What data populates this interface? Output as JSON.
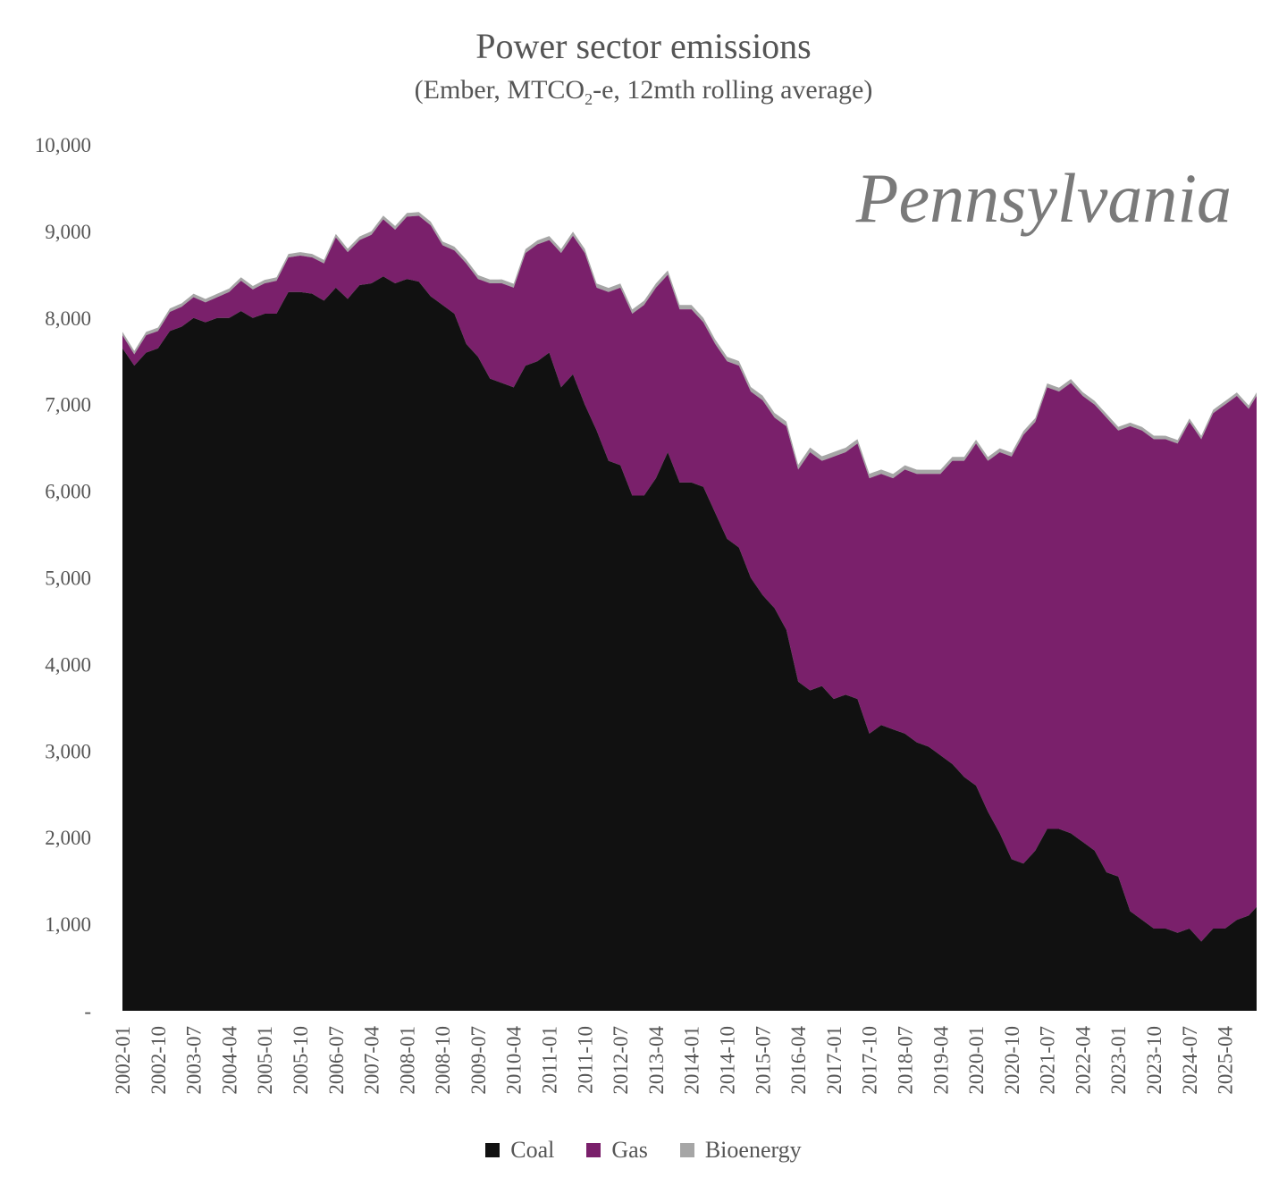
{
  "title": "Power sector emissions",
  "subtitle": {
    "before": "(Ember, MTCO",
    "sub": "2",
    "after": "-e, 12mth rolling average)"
  },
  "watermark": "Pennsylvania",
  "colors": {
    "coal": "#111111",
    "gas": "#7a206b",
    "bioenergy": "#a6a6a6"
  },
  "legend": [
    {
      "name": "Coal",
      "color": "#111111"
    },
    {
      "name": "Gas",
      "color": "#7a206b"
    },
    {
      "name": "Bioenergy",
      "color": "#a6a6a6"
    }
  ],
  "chart_data": {
    "type": "area",
    "stacked": true,
    "x_start": "2002-01",
    "x_end": "2025-12",
    "y_ticks": [
      "-",
      "1,000",
      "2,000",
      "3,000",
      "4,000",
      "5,000",
      "6,000",
      "7,000",
      "8,000",
      "9,000",
      "10,000"
    ],
    "ylim": [
      0,
      10000
    ],
    "x_ticks": [
      "2002-01",
      "2002-10",
      "2003-07",
      "2004-04",
      "2005-01",
      "2005-10",
      "2006-07",
      "2007-04",
      "2008-01",
      "2008-10",
      "2009-07",
      "2010-04",
      "2011-01",
      "2011-10",
      "2012-07",
      "2013-04",
      "2014-01",
      "2014-10",
      "2015-07",
      "2016-04",
      "2017-01",
      "2017-10",
      "2018-07",
      "2019-04",
      "2020-01",
      "2020-10",
      "2021-07",
      "2022-04",
      "2023-01",
      "2023-10",
      "2024-07",
      "2025-04"
    ],
    "grid": false,
    "legend_position": "bottom",
    "series": [
      {
        "name": "Coal",
        "points": [
          [
            "2002-01",
            7650
          ],
          [
            "2002-04",
            7450
          ],
          [
            "2002-07",
            7600
          ],
          [
            "2002-10",
            7650
          ],
          [
            "2003-01",
            7850
          ],
          [
            "2003-04",
            7900
          ],
          [
            "2003-07",
            8000
          ],
          [
            "2003-10",
            7950
          ],
          [
            "2004-01",
            8000
          ],
          [
            "2004-04",
            8000
          ],
          [
            "2004-07",
            8080
          ],
          [
            "2004-10",
            8000
          ],
          [
            "2005-01",
            8050
          ],
          [
            "2005-04",
            8050
          ],
          [
            "2005-07",
            8300
          ],
          [
            "2005-10",
            8300
          ],
          [
            "2006-01",
            8280
          ],
          [
            "2006-04",
            8200
          ],
          [
            "2006-07",
            8350
          ],
          [
            "2006-10",
            8220
          ],
          [
            "2007-01",
            8380
          ],
          [
            "2007-04",
            8400
          ],
          [
            "2007-07",
            8480
          ],
          [
            "2007-10",
            8400
          ],
          [
            "2008-01",
            8450
          ],
          [
            "2008-04",
            8420
          ],
          [
            "2008-07",
            8250
          ],
          [
            "2008-10",
            8150
          ],
          [
            "2009-01",
            8050
          ],
          [
            "2009-04",
            7700
          ],
          [
            "2009-07",
            7550
          ],
          [
            "2009-10",
            7300
          ],
          [
            "2010-01",
            7250
          ],
          [
            "2010-04",
            7200
          ],
          [
            "2010-07",
            7450
          ],
          [
            "2010-10",
            7500
          ],
          [
            "2011-01",
            7600
          ],
          [
            "2011-04",
            7200
          ],
          [
            "2011-07",
            7350
          ],
          [
            "2011-10",
            7000
          ],
          [
            "2012-01",
            6700
          ],
          [
            "2012-04",
            6350
          ],
          [
            "2012-07",
            6300
          ],
          [
            "2012-10",
            5950
          ],
          [
            "2013-01",
            5950
          ],
          [
            "2013-04",
            6150
          ],
          [
            "2013-07",
            6450
          ],
          [
            "2013-10",
            6100
          ],
          [
            "2014-01",
            6100
          ],
          [
            "2014-04",
            6050
          ],
          [
            "2014-07",
            5750
          ],
          [
            "2014-10",
            5450
          ],
          [
            "2015-01",
            5350
          ],
          [
            "2015-04",
            5000
          ],
          [
            "2015-07",
            4800
          ],
          [
            "2015-10",
            4650
          ],
          [
            "2016-01",
            4400
          ],
          [
            "2016-04",
            3800
          ],
          [
            "2016-07",
            3700
          ],
          [
            "2016-10",
            3750
          ],
          [
            "2017-01",
            3600
          ],
          [
            "2017-04",
            3650
          ],
          [
            "2017-07",
            3600
          ],
          [
            "2017-10",
            3200
          ],
          [
            "2018-01",
            3300
          ],
          [
            "2018-04",
            3250
          ],
          [
            "2018-07",
            3200
          ],
          [
            "2018-10",
            3100
          ],
          [
            "2019-01",
            3050
          ],
          [
            "2019-04",
            2950
          ],
          [
            "2019-07",
            2850
          ],
          [
            "2019-10",
            2700
          ],
          [
            "2020-01",
            2600
          ],
          [
            "2020-04",
            2300
          ],
          [
            "2020-07",
            2050
          ],
          [
            "2020-10",
            1750
          ],
          [
            "2021-01",
            1700
          ],
          [
            "2021-04",
            1850
          ],
          [
            "2021-07",
            2100
          ],
          [
            "2021-10",
            2100
          ],
          [
            "2022-01",
            2050
          ],
          [
            "2022-04",
            1950
          ],
          [
            "2022-07",
            1850
          ],
          [
            "2022-10",
            1600
          ],
          [
            "2023-01",
            1550
          ],
          [
            "2023-04",
            1150
          ],
          [
            "2023-07",
            1050
          ],
          [
            "2023-10",
            950
          ],
          [
            "2024-01",
            950
          ],
          [
            "2024-04",
            900
          ],
          [
            "2024-07",
            950
          ],
          [
            "2024-10",
            800
          ],
          [
            "2025-01",
            950
          ],
          [
            "2025-04",
            950
          ],
          [
            "2025-07",
            1050
          ],
          [
            "2025-10",
            1100
          ],
          [
            "2025-12",
            1200
          ]
        ]
      },
      {
        "name": "Gas",
        "points": [
          [
            "2002-01",
            150
          ],
          [
            "2002-04",
            130
          ],
          [
            "2002-07",
            200
          ],
          [
            "2002-10",
            200
          ],
          [
            "2003-01",
            220
          ],
          [
            "2003-04",
            230
          ],
          [
            "2003-07",
            240
          ],
          [
            "2003-10",
            230
          ],
          [
            "2004-01",
            240
          ],
          [
            "2004-04",
            300
          ],
          [
            "2004-07",
            350
          ],
          [
            "2004-10",
            330
          ],
          [
            "2005-01",
            350
          ],
          [
            "2005-04",
            380
          ],
          [
            "2005-07",
            400
          ],
          [
            "2005-10",
            420
          ],
          [
            "2006-01",
            420
          ],
          [
            "2006-04",
            430
          ],
          [
            "2006-07",
            580
          ],
          [
            "2006-10",
            540
          ],
          [
            "2007-01",
            520
          ],
          [
            "2007-04",
            560
          ],
          [
            "2007-07",
            660
          ],
          [
            "2007-10",
            620
          ],
          [
            "2008-01",
            720
          ],
          [
            "2008-04",
            760
          ],
          [
            "2008-07",
            820
          ],
          [
            "2008-10",
            690
          ],
          [
            "2009-01",
            730
          ],
          [
            "2009-04",
            930
          ],
          [
            "2009-07",
            900
          ],
          [
            "2009-10",
            1100
          ],
          [
            "2010-01",
            1150
          ],
          [
            "2010-04",
            1150
          ],
          [
            "2010-07",
            1300
          ],
          [
            "2010-10",
            1350
          ],
          [
            "2011-01",
            1300
          ],
          [
            "2011-04",
            1550
          ],
          [
            "2011-07",
            1600
          ],
          [
            "2011-10",
            1750
          ],
          [
            "2012-01",
            1650
          ],
          [
            "2012-04",
            1950
          ],
          [
            "2012-07",
            2050
          ],
          [
            "2012-10",
            2100
          ],
          [
            "2013-01",
            2200
          ],
          [
            "2013-04",
            2200
          ],
          [
            "2013-07",
            2050
          ],
          [
            "2013-10",
            2000
          ],
          [
            "2014-01",
            2000
          ],
          [
            "2014-04",
            1900
          ],
          [
            "2014-07",
            1950
          ],
          [
            "2014-10",
            2050
          ],
          [
            "2015-01",
            2100
          ],
          [
            "2015-04",
            2150
          ],
          [
            "2015-07",
            2250
          ],
          [
            "2015-10",
            2200
          ],
          [
            "2016-01",
            2350
          ],
          [
            "2016-04",
            2450
          ],
          [
            "2016-07",
            2750
          ],
          [
            "2016-10",
            2600
          ],
          [
            "2017-01",
            2800
          ],
          [
            "2017-04",
            2800
          ],
          [
            "2017-07",
            2950
          ],
          [
            "2017-10",
            2950
          ],
          [
            "2018-01",
            2900
          ],
          [
            "2018-04",
            2900
          ],
          [
            "2018-07",
            3050
          ],
          [
            "2018-10",
            3100
          ],
          [
            "2019-01",
            3150
          ],
          [
            "2019-04",
            3250
          ],
          [
            "2019-07",
            3500
          ],
          [
            "2019-10",
            3650
          ],
          [
            "2020-01",
            3950
          ],
          [
            "2020-04",
            4050
          ],
          [
            "2020-07",
            4400
          ],
          [
            "2020-10",
            4650
          ],
          [
            "2021-01",
            4950
          ],
          [
            "2021-04",
            4950
          ],
          [
            "2021-07",
            5100
          ],
          [
            "2021-10",
            5050
          ],
          [
            "2022-01",
            5200
          ],
          [
            "2022-04",
            5150
          ],
          [
            "2022-07",
            5150
          ],
          [
            "2022-10",
            5250
          ],
          [
            "2023-01",
            5150
          ],
          [
            "2023-04",
            5600
          ],
          [
            "2023-07",
            5650
          ],
          [
            "2023-10",
            5650
          ],
          [
            "2024-01",
            5650
          ],
          [
            "2024-04",
            5650
          ],
          [
            "2024-07",
            5850
          ],
          [
            "2024-10",
            5800
          ],
          [
            "2025-01",
            5950
          ],
          [
            "2025-04",
            6050
          ],
          [
            "2025-07",
            6050
          ],
          [
            "2025-10",
            5850
          ],
          [
            "2025-12",
            5900
          ]
        ]
      },
      {
        "name": "Bioenergy",
        "points": [
          [
            "2002-01",
            40
          ],
          [
            "2006-01",
            40
          ],
          [
            "2010-01",
            45
          ],
          [
            "2014-01",
            50
          ],
          [
            "2016-01",
            55
          ],
          [
            "2018-01",
            50
          ],
          [
            "2020-01",
            45
          ],
          [
            "2022-01",
            45
          ],
          [
            "2024-01",
            40
          ],
          [
            "2025-12",
            40
          ]
        ]
      }
    ]
  }
}
